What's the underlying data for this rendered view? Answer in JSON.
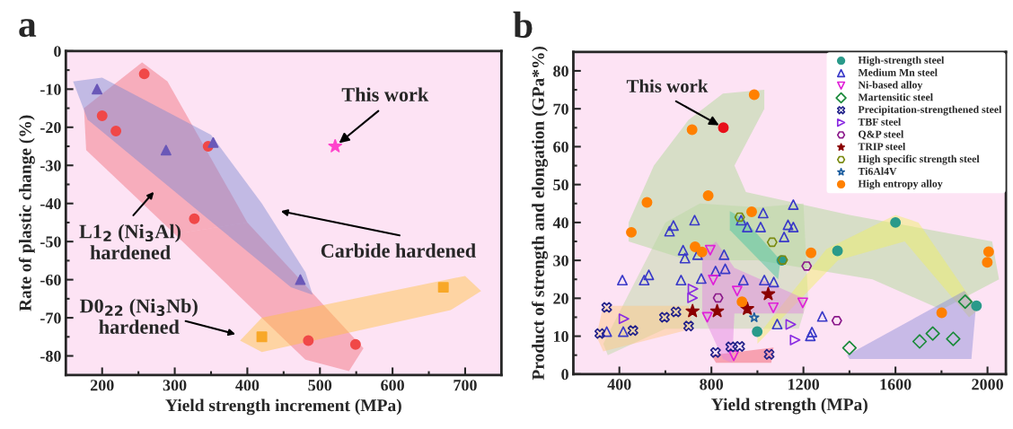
{
  "chart_data": [
    {
      "type": "scatter",
      "title": "a",
      "xlabel": "Yield strength increment (MPa)",
      "ylabel": "Rate of plastic change (%)",
      "xlim": [
        150,
        750
      ],
      "xticks": [
        200,
        300,
        400,
        500,
        600,
        700
      ],
      "ylim": [
        -85,
        0
      ],
      "yticks": [
        0,
        -10,
        -20,
        -30,
        -40,
        -50,
        -60,
        -70,
        -80
      ],
      "grid": false,
      "legend": false,
      "series": [
        {
          "color": "#f04848",
          "marker": "circle",
          "x": [
            258,
            200,
            219,
            346,
            327,
            484,
            549
          ],
          "values": [
            -6,
            -17,
            -21,
            -25,
            -44,
            -76,
            -77
          ]
        },
        {
          "color": "#6a58b8",
          "marker": "triangle",
          "x": [
            193,
            288,
            353,
            473
          ],
          "values": [
            -10,
            -26,
            -24,
            -60
          ]
        },
        {
          "color": "#f8a828",
          "marker": "square",
          "x": [
            420,
            670
          ],
          "values": [
            -75,
            -62
          ]
        },
        {
          "color": "#ff44cc",
          "marker": "star",
          "x": [
            521
          ],
          "values": [
            -25
          ]
        }
      ],
      "annotations": [
        {
          "text": "This work",
          "x": 521,
          "y": -25
        },
        "L1$_{2}$ (Ni$_{3}$Al)\nhardened",
        "Carbide hardened",
        "D0$_{22}$ (Ni$_{3}$Nb)\nhardened"
      ]
    },
    {
      "type": "scatter",
      "title": "b",
      "xlabel": "Yield strength (MPa)",
      "ylabel": "Product of strength and elongation (GPa*%)",
      "xlim": [
        200,
        2080
      ],
      "xticks": [
        400,
        800,
        1200,
        1600,
        2000
      ],
      "ylim": [
        0,
        85
      ],
      "yticks": [
        0,
        10,
        20,
        30,
        40,
        50,
        60,
        70,
        80
      ],
      "grid": false,
      "legend": "top right",
      "series": [
        {
          "name": "High-strength steel",
          "color": "#2a9a8a",
          "marker": "circle",
          "x": [
            1600,
            1348,
            1952,
            999,
            1106
          ],
          "values": [
            40.0,
            32.5,
            18.0,
            11.2,
            30.0
          ]
        },
        {
          "name": "Medium Mn steel",
          "color": "#3a3ac8",
          "marker": "triangle",
          "x": [
            413,
            508,
            528,
            618,
            635,
            727,
            677,
            685,
            668,
            740,
            756,
            818,
            855,
            860,
            939,
            1025,
            929,
            956,
            1014,
            1030,
            1071,
            345,
            417,
            1156,
            1133,
            1156,
            1116,
            1282,
            1237,
            1230,
            1086
          ],
          "values": [
            24.8,
            24.8,
            26.2,
            37.7,
            39.2,
            40.6,
            32.7,
            30.6,
            24.8,
            31.5,
            25.2,
            27.2,
            31.5,
            27.8,
            24.8,
            42.5,
            40.6,
            38.8,
            38.8,
            24.8,
            24.3,
            11.2,
            11.2,
            44.7,
            39.4,
            38.8,
            36.2,
            15.2,
            11.1,
            10.1,
            13.2
          ]
        },
        {
          "name": "Ni-based alloy",
          "color": "#e020d8",
          "marker": "triangle_down",
          "x": [
            795,
            808,
            912,
            782,
            897,
            1069,
            1197
          ],
          "values": [
            32.7,
            24.8,
            21.9,
            15.0,
            4.8,
            17.5,
            18.8
          ]
        },
        {
          "name": "Martensitic steel",
          "color": "#1a8a3a",
          "marker": "diamond",
          "x": [
            1903,
            1705,
            1762,
            1851,
            1400
          ],
          "values": [
            19.1,
            8.6,
            10.7,
            9.3,
            6.9
          ]
        },
        {
          "name": "Precipitation-strengthened steel",
          "color": "#22228a",
          "marker": "cross",
          "x": [
            345,
            315,
            459,
            596,
            646,
            701,
            818,
            884,
            923,
            1051
          ],
          "values": [
            17.6,
            10.7,
            11.5,
            15.0,
            16.4,
            12.7,
            5.7,
            7.2,
            7.3,
            5.2
          ]
        },
        {
          "name": "TBF steel",
          "color": "#8a2be2",
          "marker": "triangle_right",
          "x": [
            720,
            718,
            420,
            1145,
            1164
          ],
          "values": [
            22.5,
            20.1,
            14.6,
            13.1,
            9.0
          ]
        },
        {
          "name": "Q&P steel",
          "color": "#8b1a8b",
          "x": [
            829,
            1214,
            1345
          ],
          "values": [
            20.1,
            28.5,
            14.1
          ]
        },
        {
          "name": "TRIP steel",
          "color": "#8b0000",
          "marker": "star",
          "x": [
            718,
            825,
            956,
            1047
          ],
          "values": [
            16.6,
            16.6,
            17.2,
            21.1
          ]
        },
        {
          "name": "High specific strength steel",
          "color": "#7a8a10",
          "x": [
            923,
            1064,
            1110
          ],
          "values": [
            41.4,
            34.8,
            30.1
          ]
        },
        {
          "name": "Ti6Al4V",
          "color": "#1f5fa0",
          "marker": "asterisk",
          "x": [
            986
          ],
          "values": [
            14.9
          ]
        },
        {
          "name": "High entropy alloy",
          "color": "#ff8000",
          "marker": "circle",
          "x": [
            452,
            520,
            716,
            786,
            986,
            729,
            759,
            975,
            933,
            1233,
            2005,
            1999,
            1801
          ],
          "values": [
            37.4,
            45.3,
            64.5,
            47.1,
            73.7,
            33.6,
            32.2,
            42.8,
            19.1,
            32.0,
            32.3,
            29.5,
            16.2
          ]
        },
        {
          "color": "#e8101a",
          "marker": "circle",
          "x": [
            852
          ],
          "values": [
            65
          ]
        }
      ],
      "annotations": [
        {
          "text": "This work",
          "x": 852,
          "y": 65
        }
      ]
    }
  ]
}
